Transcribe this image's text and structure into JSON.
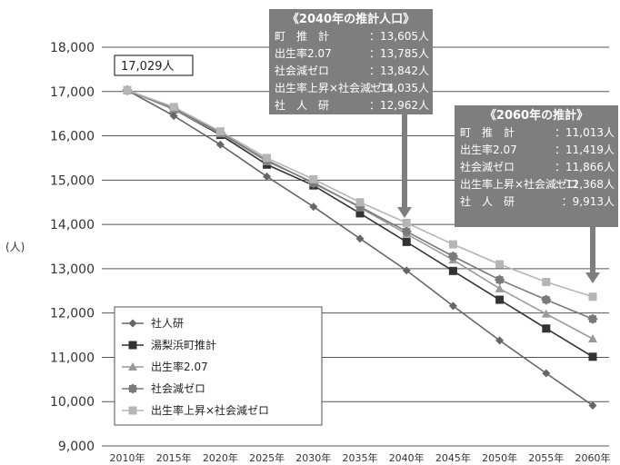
{
  "chart_data": {
    "type": "line",
    "ylabel": "(人)",
    "ylim": [
      9000,
      18000
    ],
    "yticks": [
      "9,000",
      "10,000",
      "11,000",
      "12,000",
      "13,000",
      "14,000",
      "15,000",
      "16,000",
      "17,000",
      "18,000"
    ],
    "x": [
      "2010年",
      "2015年",
      "2020年",
      "2025年",
      "2030年",
      "2035年",
      "2040年",
      "2045年",
      "2050年",
      "2055年",
      "2060年"
    ],
    "grid": "horizontal",
    "legend_position": "bottom-left",
    "start_label": "17,029人",
    "series": [
      {
        "name": "社人研",
        "color": "#666666",
        "marker": "diamond",
        "values": [
          17029,
          16450,
          15800,
          15080,
          14400,
          13680,
          12962,
          12160,
          11380,
          10640,
          9913
        ]
      },
      {
        "name": "湯梨浜町推計",
        "color": "#333333",
        "marker": "square",
        "values": [
          17029,
          16600,
          16020,
          15350,
          14880,
          14250,
          13605,
          12950,
          12300,
          11650,
          11013
        ]
      },
      {
        "name": "出生率2.07",
        "color": "#9a9a9a",
        "marker": "triangle",
        "values": [
          17029,
          16600,
          16050,
          15420,
          14950,
          14380,
          13785,
          13200,
          12550,
          11980,
          11419
        ]
      },
      {
        "name": "社会減ゼロ",
        "color": "#7a7a7a",
        "marker": "star",
        "values": [
          17029,
          16620,
          16070,
          15450,
          14930,
          14400,
          13842,
          13280,
          12750,
          12300,
          11866
        ]
      },
      {
        "name": "出生率上昇×社会減ゼロ",
        "color": "#b5b5b5",
        "marker": "square",
        "values": [
          17029,
          16650,
          16100,
          15500,
          15020,
          14500,
          14035,
          13550,
          13100,
          12700,
          12368
        ]
      }
    ],
    "annotations": [
      {
        "title": "《2040年の推計人口》",
        "rows": [
          {
            "label": "町　推　計",
            "value": "13,605人"
          },
          {
            "label": "出生率2.07",
            "value": "13,785人"
          },
          {
            "label": "社会減ゼロ",
            "value": "13,842人"
          },
          {
            "label": "出生率上昇×社会減ゼロ",
            "value": "14,035人"
          },
          {
            "label": "社　人　研",
            "value": "12,962人"
          }
        ]
      },
      {
        "title": "《2060年の推計》",
        "rows": [
          {
            "label": "町　推　計",
            "value": "11,013人"
          },
          {
            "label": "出生率2.07",
            "value": "11,419人"
          },
          {
            "label": "社会減ゼロ",
            "value": "11,866人"
          },
          {
            "label": "出生率上昇×社会減ゼロ",
            "value": "12,368人"
          },
          {
            "label": "社　人　研",
            "value": "9,913人"
          }
        ]
      }
    ]
  }
}
